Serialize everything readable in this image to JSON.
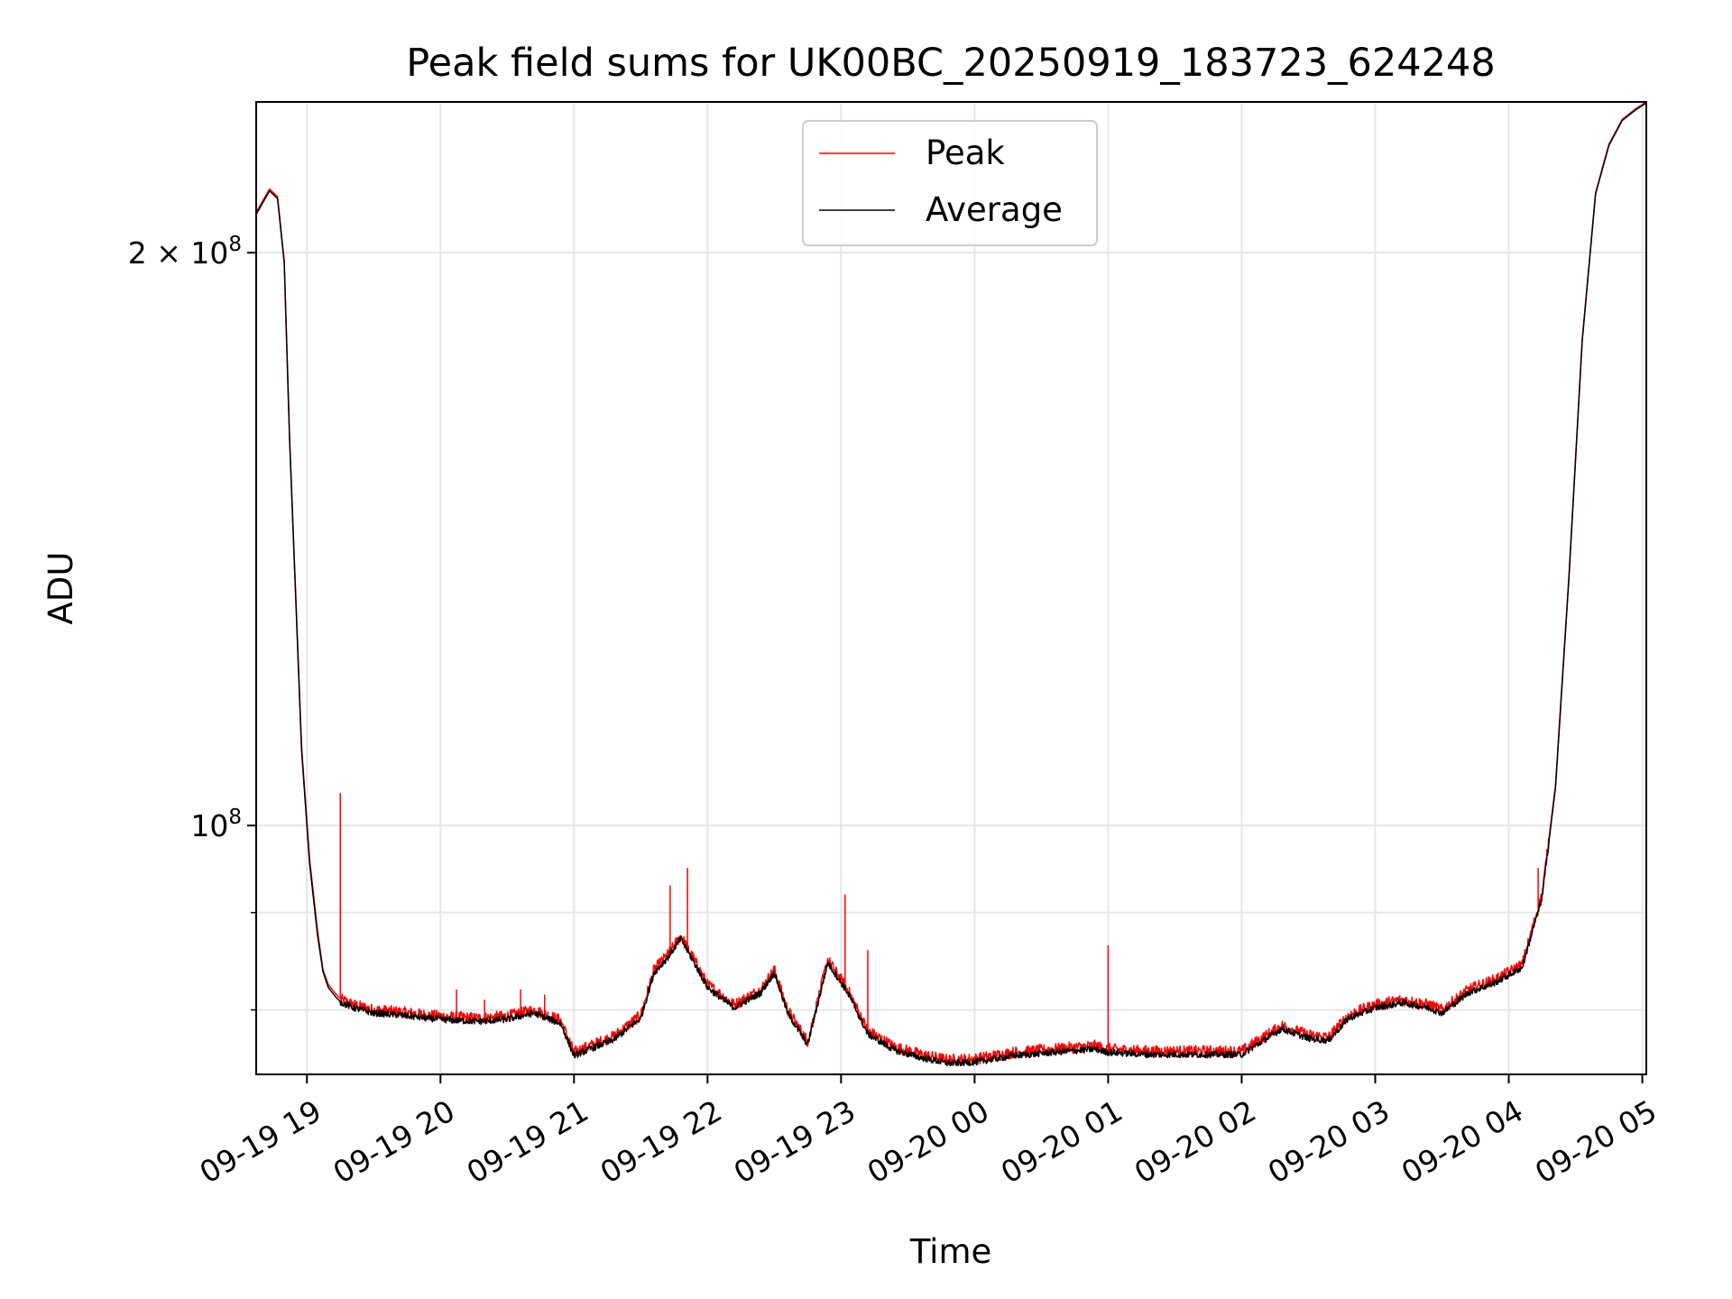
{
  "chart_data": {
    "type": "line",
    "title": "Peak field sums for UK00BC_20250919_183723_624248",
    "xlabel": "Time",
    "ylabel": "ADU",
    "yscale": "log",
    "xlim": [
      18.62,
      29.03
    ],
    "ylim": [
      74000000,
      240000000
    ],
    "grid": true,
    "legend_position": "upper-center",
    "x_ticks": [
      {
        "value": 19,
        "label": "09-19 19"
      },
      {
        "value": 20,
        "label": "09-19 20"
      },
      {
        "value": 21,
        "label": "09-19 21"
      },
      {
        "value": 22,
        "label": "09-19 22"
      },
      {
        "value": 23,
        "label": "09-19 23"
      },
      {
        "value": 24,
        "label": "09-20 00"
      },
      {
        "value": 25,
        "label": "09-20 01"
      },
      {
        "value": 26,
        "label": "09-20 02"
      },
      {
        "value": 27,
        "label": "09-20 03"
      },
      {
        "value": 28,
        "label": "09-20 04"
      },
      {
        "value": 29,
        "label": "09-20 05"
      }
    ],
    "y_ticks": [
      {
        "value": 200000000,
        "base": "2 × 10",
        "exp": "8"
      },
      {
        "value": 100000000,
        "base": "10",
        "exp": "8"
      }
    ],
    "y_minor_ticks": [
      80000000,
      90000000
    ],
    "series": [
      {
        "name": "Peak",
        "color": "#ff0000",
        "x": [
          18.62,
          18.72,
          18.78,
          18.83,
          18.87,
          18.92,
          18.96,
          19.02,
          19.08,
          19.12,
          19.16,
          19.22,
          19.26,
          19.35,
          19.5,
          19.7,
          19.9,
          20.1,
          20.3,
          20.5,
          20.7,
          20.9,
          21.0,
          21.1,
          21.3,
          21.5,
          21.6,
          21.7,
          21.8,
          21.9,
          22.0,
          22.2,
          22.4,
          22.5,
          22.6,
          22.75,
          22.9,
          23.05,
          23.2,
          23.4,
          23.6,
          23.8,
          24.0,
          24.3,
          24.6,
          24.9,
          25.0,
          25.3,
          25.6,
          26.0,
          26.3,
          26.5,
          26.65,
          26.8,
          26.9,
          27.0,
          27.2,
          27.4,
          27.5,
          27.7,
          27.9,
          28.1,
          28.25,
          28.35,
          28.45,
          28.55,
          28.65,
          28.75,
          28.85,
          28.95,
          29.03
        ],
        "y": [
          210000000,
          216000000,
          214000000,
          198000000,
          160000000,
          130000000,
          110000000,
          96000000,
          88000000,
          84000000,
          82500000,
          81500000,
          81000000,
          80500000,
          80000000,
          79800000,
          79500000,
          79300000,
          79200000,
          79400000,
          80000000,
          79000000,
          76000000,
          76500000,
          77500000,
          79500000,
          84000000,
          85500000,
          87500000,
          85000000,
          82500000,
          80500000,
          82000000,
          84000000,
          80000000,
          77000000,
          85000000,
          82000000,
          78000000,
          76500000,
          75800000,
          75300000,
          75400000,
          76000000,
          76300000,
          76600000,
          76300000,
          76100000,
          76100000,
          76100000,
          78500000,
          77600000,
          77400000,
          79500000,
          80000000,
          80500000,
          81000000,
          80500000,
          80000000,
          82000000,
          83000000,
          84500000,
          92000000,
          105000000,
          135000000,
          180000000,
          215000000,
          228000000,
          235000000,
          238000000,
          240000000
        ]
      },
      {
        "name": "Average",
        "color": "#000000",
        "x": [
          18.62,
          18.72,
          18.78,
          18.83,
          18.87,
          18.92,
          18.96,
          19.02,
          19.08,
          19.12,
          19.16,
          19.22,
          19.26,
          19.35,
          19.5,
          19.7,
          19.9,
          20.1,
          20.3,
          20.5,
          20.7,
          20.9,
          21.0,
          21.1,
          21.3,
          21.5,
          21.6,
          21.7,
          21.8,
          21.9,
          22.0,
          22.2,
          22.4,
          22.5,
          22.6,
          22.75,
          22.9,
          23.05,
          23.2,
          23.4,
          23.6,
          23.8,
          24.0,
          24.3,
          24.6,
          24.9,
          25.0,
          25.3,
          25.6,
          26.0,
          26.3,
          26.5,
          26.65,
          26.8,
          26.9,
          27.0,
          27.2,
          27.4,
          27.5,
          27.7,
          27.9,
          28.1,
          28.25,
          28.35,
          28.45,
          28.55,
          28.65,
          28.75,
          28.85,
          28.95,
          29.03
        ],
        "y": [
          209500000,
          215500000,
          213500000,
          197500000,
          159500000,
          129500000,
          109500000,
          95500000,
          87500000,
          83800000,
          82200000,
          81200000,
          80700000,
          80200000,
          79700000,
          79500000,
          79200000,
          79000000,
          78900000,
          79100000,
          79700000,
          78700000,
          75700000,
          76200000,
          77200000,
          79200000,
          83700000,
          85200000,
          87200000,
          84700000,
          82200000,
          80200000,
          81700000,
          83700000,
          79700000,
          76700000,
          84700000,
          81700000,
          77700000,
          76200000,
          75500000,
          75000000,
          75100000,
          75700000,
          76000000,
          76300000,
          76000000,
          75800000,
          75800000,
          75800000,
          78200000,
          77300000,
          77100000,
          79200000,
          79700000,
          80200000,
          80700000,
          80200000,
          79700000,
          81700000,
          82700000,
          84200000,
          91700000,
          104700000,
          134700000,
          179700000,
          214700000,
          227700000,
          234700000,
          237700000,
          239700000
        ]
      }
    ],
    "spikes": [
      {
        "x": 19.25,
        "y": 104000000
      },
      {
        "x": 20.12,
        "y": 82000000
      },
      {
        "x": 20.33,
        "y": 81000000
      },
      {
        "x": 20.6,
        "y": 82000000
      },
      {
        "x": 20.78,
        "y": 81500000
      },
      {
        "x": 21.72,
        "y": 93000000
      },
      {
        "x": 21.85,
        "y": 95000000
      },
      {
        "x": 23.03,
        "y": 92000000
      },
      {
        "x": 23.2,
        "y": 86000000
      },
      {
        "x": 25.0,
        "y": 86500000
      },
      {
        "x": 28.22,
        "y": 95000000
      }
    ]
  }
}
